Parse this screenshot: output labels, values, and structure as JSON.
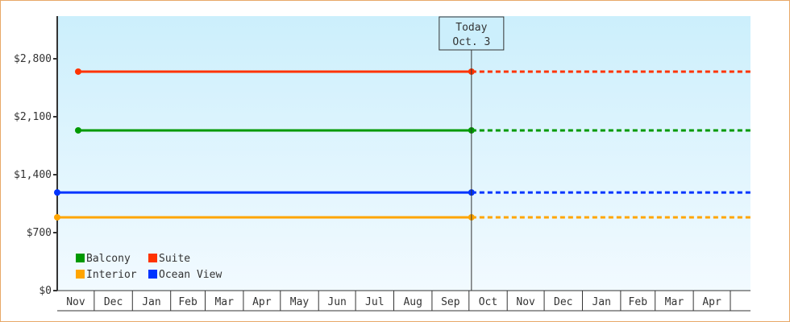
{
  "chart_data": {
    "type": "line",
    "y_ticks": [
      "$0",
      "$700",
      "$1,400",
      "$2,100",
      "$2,800"
    ],
    "y_tick_values": [
      0,
      700,
      1400,
      2100,
      2800
    ],
    "ylim": [
      0,
      3300
    ],
    "x_ticks": [
      "Nov",
      "Dec",
      "Jan",
      "Feb",
      "Mar",
      "Apr",
      "May",
      "Jun",
      "Jul",
      "Aug",
      "Sep",
      "Oct",
      "Nov",
      "Dec",
      "Jan",
      "Feb",
      "Mar",
      "Apr"
    ],
    "grid": false,
    "legend_position": "bottom-left",
    "today": {
      "label": "Today",
      "date": "Oct. 3"
    },
    "series": [
      {
        "name": "Balcony",
        "color": "#009900",
        "value": 1935,
        "start": "Nov 18",
        "projected_to": "end"
      },
      {
        "name": "Suite",
        "color": "#ff3300",
        "value": 2645,
        "start": "Nov 18",
        "projected_to": "end"
      },
      {
        "name": "Interior",
        "color": "#ffa500",
        "value": 885,
        "start": "Nov 1",
        "projected_to": "end"
      },
      {
        "name": "Ocean View",
        "color": "#0033ff",
        "value": 1185,
        "start": "Nov 1",
        "projected_to": "end"
      }
    ],
    "background_gradient": [
      "#cceffc",
      "#f2faff"
    ]
  }
}
